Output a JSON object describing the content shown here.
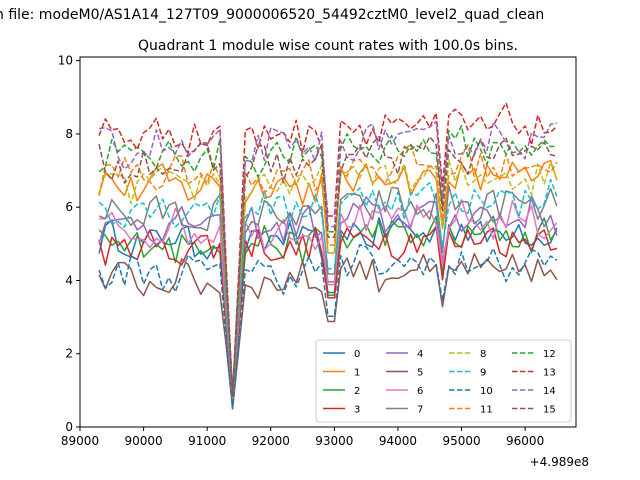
{
  "suptitle": "n file: modeM0/AS1A14_127T09_9000006520_54492cztM0_level2_quad_clean",
  "chart_data": {
    "type": "line",
    "title": "Quadrant 1 module wise count rates with 100.0s bins.",
    "xlabel": "",
    "ylabel": "",
    "x_offset_label": "+4.989e8",
    "xlim": [
      89000,
      96800
    ],
    "ylim": [
      0,
      10.1
    ],
    "xticks": [
      89000,
      90000,
      91000,
      92000,
      93000,
      94000,
      95000,
      96000
    ],
    "xtick_labels": [
      "89000",
      "90000",
      "91000",
      "92000",
      "93000",
      "94000",
      "95000",
      "96000"
    ],
    "yticks": [
      0,
      2,
      4,
      6,
      8,
      10
    ],
    "ytick_labels": [
      "0",
      "2",
      "4",
      "6",
      "8",
      "10"
    ],
    "x_start": 89300,
    "x_step": 100,
    "dips": [
      {
        "x": 91400,
        "value": 0.7
      },
      {
        "x": 92950,
        "value": 3.3
      },
      {
        "x": 94700,
        "value": 4.8
      }
    ],
    "legend": {
      "location": "lower-right",
      "columns": 4
    },
    "series": [
      {
        "name": "0",
        "color": "#1f77b4",
        "dash": "solid",
        "base": 5.1,
        "min": 0.5
      },
      {
        "name": "1",
        "color": "#ff7f0e",
        "dash": "solid",
        "base": 6.6,
        "min": 0.7
      },
      {
        "name": "2",
        "color": "#2ca02c",
        "dash": "solid",
        "base": 5.0,
        "min": 0.6
      },
      {
        "name": "3",
        "color": "#d62728",
        "dash": "solid",
        "base": 4.9,
        "min": 0.6
      },
      {
        "name": "4",
        "color": "#9467bd",
        "dash": "solid",
        "base": 5.5,
        "min": 0.7
      },
      {
        "name": "5",
        "color": "#8c564b",
        "dash": "solid",
        "base": 4.0,
        "min": 0.5
      },
      {
        "name": "6",
        "color": "#e377c2",
        "dash": "solid",
        "base": 5.4,
        "min": 0.7
      },
      {
        "name": "7",
        "color": "#7f7f7f",
        "dash": "solid",
        "base": 5.8,
        "min": 0.7
      },
      {
        "name": "8",
        "color": "#bcbd22",
        "dash": "dashed",
        "base": 6.6,
        "min": 0.8
      },
      {
        "name": "9",
        "color": "#17becf",
        "dash": "dashed",
        "base": 6.0,
        "min": 0.7
      },
      {
        "name": "10",
        "color": "#1f77b4",
        "dash": "dashed",
        "base": 4.2,
        "min": 0.5
      },
      {
        "name": "11",
        "color": "#ff7f0e",
        "dash": "dashed",
        "base": 6.9,
        "min": 0.8
      },
      {
        "name": "12",
        "color": "#2ca02c",
        "dash": "dashed",
        "base": 7.4,
        "min": 0.9
      },
      {
        "name": "13",
        "color": "#d62728",
        "dash": "dashed",
        "base": 8.0,
        "min": 0.9
      },
      {
        "name": "14",
        "color": "#9467bd",
        "dash": "dashed",
        "base": 7.6,
        "min": 0.9
      },
      {
        "name": "15",
        "color": "#8c564b",
        "dash": "dashed",
        "base": 7.2,
        "min": 0.8
      }
    ]
  }
}
